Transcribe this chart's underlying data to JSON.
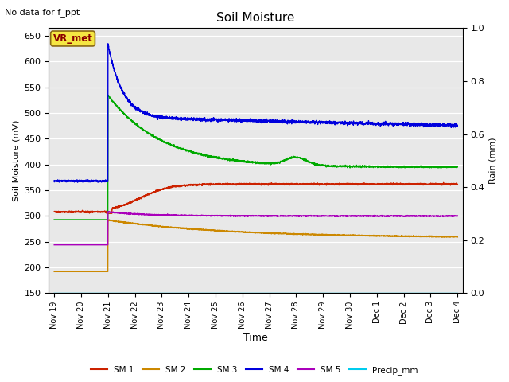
{
  "title": "Soil Moisture",
  "top_left_text": "No data for f_ppt",
  "annotation_text": "VR_met",
  "ylabel_left": "Soil Moisture (mV)",
  "ylabel_right": "Rain (mm)",
  "xlabel": "Time",
  "ylim_left": [
    150,
    665
  ],
  "ylim_right": [
    0.0,
    1.0
  ],
  "yticks_left": [
    150,
    200,
    250,
    300,
    350,
    400,
    450,
    500,
    550,
    600,
    650
  ],
  "yticks_right": [
    0.0,
    0.2,
    0.4,
    0.6,
    0.8,
    1.0
  ],
  "bg_color": "#e8e8e8",
  "colors": {
    "SM1": "#cc2200",
    "SM2": "#cc8800",
    "SM3": "#00aa00",
    "SM4": "#0000dd",
    "SM5": "#aa00bb",
    "Precip": "#00ccee"
  },
  "spike_day": 2.0,
  "x_tick_labels": [
    "Nov 19",
    "Nov 20",
    "Nov 21",
    "Nov 22",
    "Nov 23",
    "Nov 24",
    "Nov 25",
    "Nov 26",
    "Nov 27",
    "Nov 28",
    "Nov 29",
    "Nov 30",
    "Dec 1",
    "Dec 2",
    "Dec 3",
    "Dec 4"
  ]
}
